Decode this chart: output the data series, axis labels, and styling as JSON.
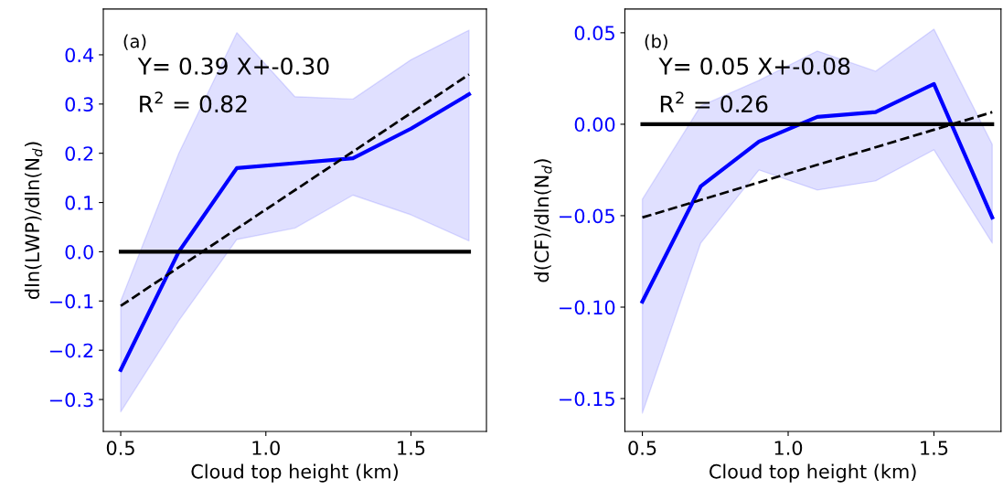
{
  "chart_data": [
    {
      "type": "line",
      "xlabel": "Cloud top height (km)",
      "ylabel": "dln(LWP)/dln(N$_{d}$)",
      "annotations": [
        "(a)",
        "Y= 0.39 X+-0.30",
        "R$^{2}$ = 0.82"
      ],
      "xlim": [
        0.44,
        1.76
      ],
      "xticks": [
        {
          "value": 0.5,
          "label": "0.5"
        },
        {
          "value": 1.0,
          "label": "1.0"
        },
        {
          "value": 1.5,
          "label": "1.5"
        }
      ],
      "ylim": [
        -0.365,
        0.493
      ],
      "yticks": [
        {
          "value": -0.3,
          "label": "−0.3"
        },
        {
          "value": -0.2,
          "label": "−0.2"
        },
        {
          "value": -0.1,
          "label": "−0.1"
        },
        {
          "value": 0,
          "label": "0.0"
        },
        {
          "value": 0.1,
          "label": "0.1"
        },
        {
          "value": 0.2,
          "label": "0.2"
        },
        {
          "value": 0.3,
          "label": "0.3"
        },
        {
          "value": 0.4,
          "label": "0.4"
        }
      ],
      "grid": false,
      "series": [
        {
          "color": "#0000ff",
          "x": [
            0.5,
            0.7,
            0.9,
            1.1,
            1.3,
            1.5,
            1.7
          ],
          "values": [
            -0.24,
            0.0,
            0.17,
            0.18,
            0.19,
            0.25,
            0.32
          ],
          "lower": [
            -0.325,
            -0.14,
            0.025,
            0.048,
            0.115,
            0.075,
            0.022
          ],
          "upper": [
            -0.1,
            0.2,
            0.445,
            0.315,
            0.31,
            0.39,
            0.45
          ]
        },
        {
          "color": "#000000",
          "x": [
            0.5,
            1.7
          ],
          "values": [
            0,
            0
          ]
        },
        {
          "color": "#000000",
          "x": [
            0.5,
            1.7
          ],
          "values": [
            -0.11,
            0.36
          ],
          "line_style": "dashed"
        }
      ]
    },
    {
      "type": "line",
      "xlabel": "Cloud top height (km)",
      "ylabel": "d(CF)/dln(N$_{d}$)",
      "annotations": [
        "(b)",
        "Y= 0.05 X+-0.08",
        "R$^{2}$ = 0.26"
      ],
      "xlim": [
        0.44,
        1.73
      ],
      "xticks": [
        {
          "value": 0.5,
          "label": "0.5"
        },
        {
          "value": 1.0,
          "label": "1.0"
        },
        {
          "value": 1.5,
          "label": "1.5"
        }
      ],
      "ylim": [
        -0.168,
        0.063
      ],
      "yticks": [
        {
          "value": -0.15,
          "label": "−0.15"
        },
        {
          "value": -0.1,
          "label": "−0.10"
        },
        {
          "value": -0.05,
          "label": "−0.05"
        },
        {
          "value": 0,
          "label": "0.00"
        },
        {
          "value": 0.05,
          "label": "0.05"
        }
      ],
      "grid": false,
      "series": [
        {
          "color": "#0000ff",
          "x": [
            0.5,
            0.7,
            0.9,
            1.1,
            1.3,
            1.5,
            1.7
          ],
          "values": [
            -0.097,
            -0.034,
            -0.0095,
            0.004,
            0.0066,
            0.022,
            -0.051
          ],
          "lower": [
            -0.158,
            -0.065,
            -0.025,
            -0.036,
            -0.031,
            -0.014,
            -0.065
          ],
          "upper": [
            -0.041,
            0.01,
            0.024,
            0.04,
            0.029,
            0.052,
            -0.011
          ]
        },
        {
          "color": "#000000",
          "x": [
            0.5,
            1.7
          ],
          "values": [
            0,
            0
          ]
        },
        {
          "color": "#000000",
          "x": [
            0.5,
            1.7
          ],
          "values": [
            -0.051,
            0.0066
          ],
          "line_style": "dashed"
        }
      ]
    }
  ]
}
